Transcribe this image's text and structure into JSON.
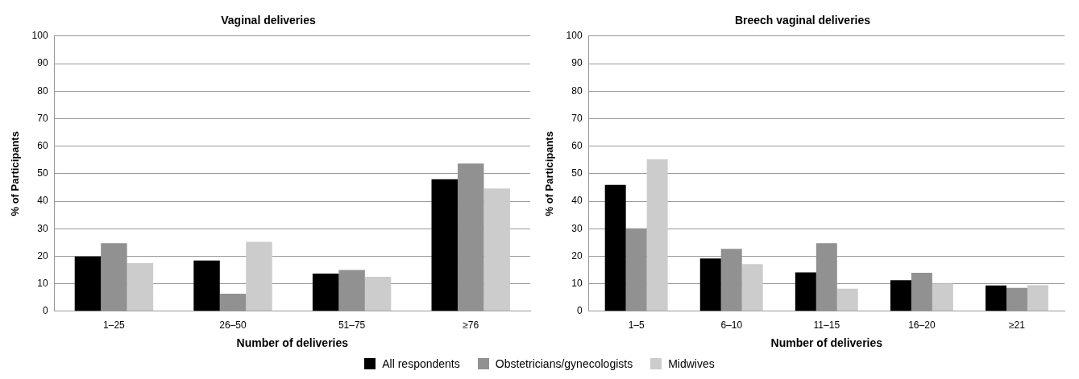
{
  "chart_data": [
    {
      "type": "bar",
      "title": "Vaginal deliveries",
      "xlabel": "Number of deliveries",
      "ylabel": "% of Participants",
      "categories": [
        "1–25",
        "26–50",
        "51–75",
        "≥76"
      ],
      "series": [
        {
          "color": "#000000",
          "values": [
            19.9,
            18.4,
            13.7,
            48.0
          ]
        },
        {
          "color": "#919191",
          "values": [
            24.7,
            6.4,
            15.0,
            53.7
          ]
        },
        {
          "color": "#cccccc",
          "values": [
            17.5,
            25.2,
            12.5,
            44.6
          ]
        }
      ],
      "ylim": [
        0,
        100
      ],
      "yticks": [
        0,
        10,
        20,
        30,
        40,
        50,
        60,
        70,
        80,
        90,
        100
      ],
      "grid": "y"
    },
    {
      "type": "bar",
      "title": "Breech vaginal deliveries",
      "xlabel": "Number of deliveries",
      "ylabel": "% of Participants",
      "categories": [
        "1–5",
        "6–10",
        "11–15",
        "16–20",
        "≥21"
      ],
      "series": [
        {
          "name": "All respondents",
          "color": "#000000",
          "values": [
            45.9,
            19.2,
            14.1,
            11.3,
            9.4
          ]
        },
        {
          "name": "Obstetricians/gynecologists",
          "color": "#919191",
          "values": [
            30.1,
            22.7,
            24.7,
            14.0,
            8.5
          ]
        },
        {
          "name": "Midwives",
          "color": "#cccccc",
          "values": [
            55.2,
            17.1,
            8.2,
            10.0,
            9.5
          ]
        }
      ],
      "ylim": [
        0,
        100
      ],
      "yticks": [
        0,
        10,
        20,
        30,
        40,
        50,
        60,
        70,
        80,
        90,
        100
      ],
      "grid": "y",
      "legend": "bottom"
    }
  ]
}
